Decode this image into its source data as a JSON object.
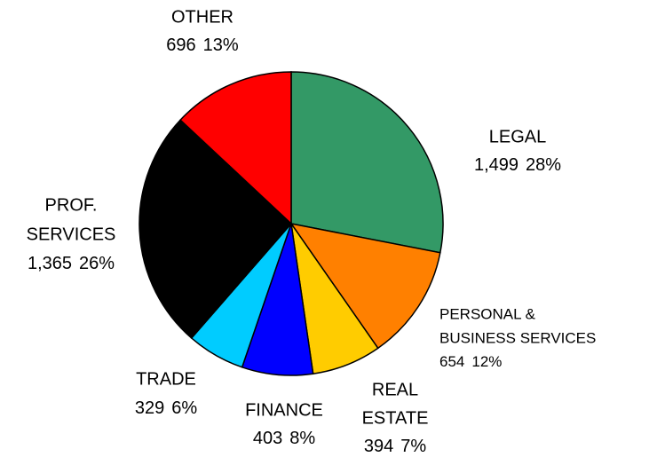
{
  "chart_data": {
    "type": "pie",
    "categories": [
      [
        "LEGAL"
      ],
      [
        "PERSONAL &",
        "BUSINESS SERVICES"
      ],
      [
        "REAL",
        "ESTATE"
      ],
      [
        "FINANCE"
      ],
      [
        "TRADE"
      ],
      [
        "PROF.",
        "SERVICES"
      ],
      [
        "OTHER"
      ]
    ],
    "values": [
      1499,
      654,
      394,
      403,
      329,
      1365,
      696
    ],
    "value_labels": [
      "1,499",
      "654",
      "394",
      "403",
      "329",
      "1,365",
      "696"
    ],
    "percent_labels": [
      "28%",
      "12%",
      "7%",
      "8%",
      "6%",
      "26%",
      "13%"
    ],
    "colors": [
      "#339966",
      "#ff8000",
      "#ffcc00",
      "#0000ff",
      "#00ccff",
      "#000000",
      "#ff0000"
    ]
  }
}
